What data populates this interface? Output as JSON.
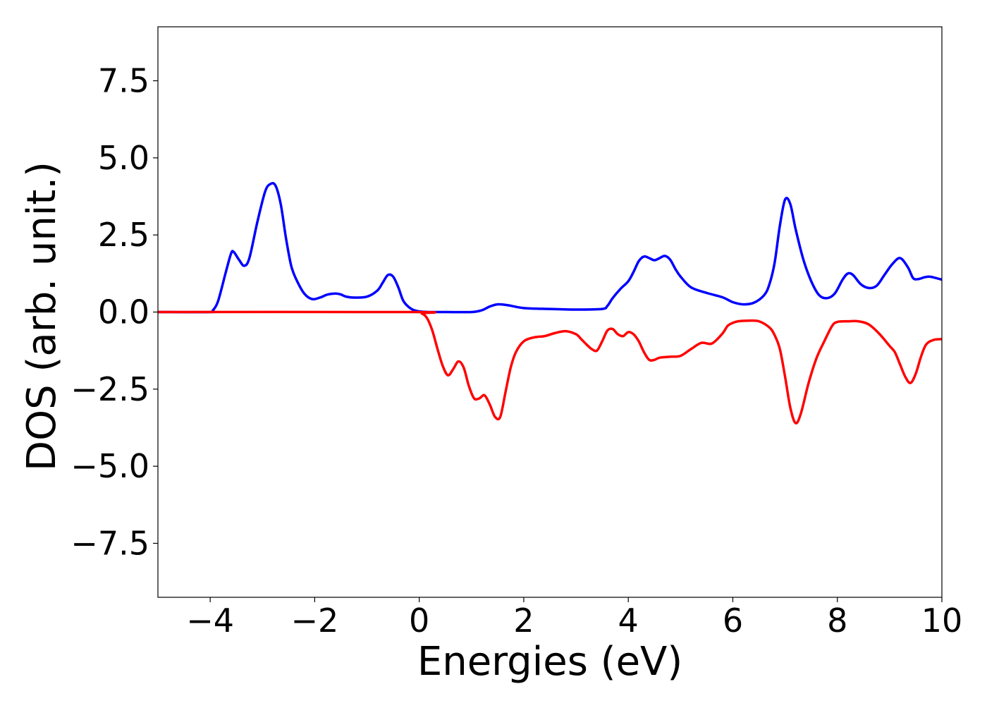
{
  "chart_data": {
    "type": "line",
    "title": "",
    "xlabel": "Energies (eV)",
    "ylabel": "DOS (arb. unit.)",
    "xlim": [
      -5,
      10
    ],
    "ylim": [
      -9.25,
      9.25
    ],
    "grid": false,
    "x_ticks": [
      -4,
      -2,
      0,
      2,
      4,
      6,
      8,
      10
    ],
    "x_tick_labels": [
      "−4",
      "−2",
      "0",
      "2",
      "4",
      "6",
      "8",
      "10"
    ],
    "y_ticks": [
      7.5,
      5.0,
      2.5,
      0.0,
      -2.5,
      -5.0,
      -7.5
    ],
    "y_tick_labels": [
      "7.5",
      "5.0",
      "2.5",
      "0.0",
      "−2.5",
      "−5.0",
      "−7.5"
    ],
    "series": [
      {
        "color": "#0000ff",
        "x": [
          -5.0,
          -4.0,
          -3.95,
          -3.85,
          -3.7,
          -3.6,
          -3.55,
          -3.45,
          -3.35,
          -3.25,
          -3.1,
          -2.95,
          -2.85,
          -2.75,
          -2.65,
          -2.55,
          -2.45,
          -2.35,
          -2.2,
          -2.05,
          -1.9,
          -1.75,
          -1.6,
          -1.5,
          -1.4,
          -1.25,
          -1.0,
          -0.8,
          -0.7,
          -0.6,
          -0.5,
          -0.4,
          -0.3,
          -0.15,
          0.0,
          0.2,
          0.5,
          1.0,
          1.2,
          1.35,
          1.5,
          1.7,
          2.0,
          2.5,
          3.0,
          3.5,
          3.6,
          3.7,
          3.85,
          4.0,
          4.1,
          4.2,
          4.3,
          4.4,
          4.5,
          4.6,
          4.7,
          4.8,
          4.9,
          5.0,
          5.2,
          5.5,
          5.8,
          6.0,
          6.2,
          6.4,
          6.6,
          6.7,
          6.8,
          6.9,
          7.0,
          7.1,
          7.2,
          7.35,
          7.5,
          7.65,
          7.8,
          7.95,
          8.1,
          8.2,
          8.3,
          8.45,
          8.6,
          8.75,
          8.9,
          9.05,
          9.2,
          9.35,
          9.45,
          9.55,
          9.65,
          9.75,
          9.85,
          10.0
        ],
        "y": [
          0.0,
          0.0,
          0.05,
          0.35,
          1.3,
          1.9,
          1.95,
          1.7,
          1.5,
          1.75,
          2.9,
          3.9,
          4.15,
          4.1,
          3.5,
          2.4,
          1.5,
          1.05,
          0.6,
          0.42,
          0.47,
          0.57,
          0.6,
          0.57,
          0.5,
          0.47,
          0.5,
          0.7,
          0.95,
          1.2,
          1.15,
          0.8,
          0.35,
          0.1,
          0.02,
          0.0,
          0.0,
          0.0,
          0.06,
          0.18,
          0.25,
          0.22,
          0.13,
          0.1,
          0.08,
          0.1,
          0.2,
          0.45,
          0.75,
          1.0,
          1.3,
          1.65,
          1.8,
          1.75,
          1.68,
          1.75,
          1.82,
          1.7,
          1.4,
          1.15,
          0.8,
          0.62,
          0.48,
          0.32,
          0.25,
          0.3,
          0.55,
          0.9,
          1.6,
          2.8,
          3.65,
          3.5,
          2.7,
          1.7,
          1.0,
          0.55,
          0.45,
          0.6,
          1.05,
          1.25,
          1.2,
          0.9,
          0.78,
          0.85,
          1.2,
          1.55,
          1.75,
          1.45,
          1.1,
          1.07,
          1.12,
          1.15,
          1.12,
          1.05
        ]
      },
      {
        "color": "#ff0000",
        "x": [
          -5.0,
          -0.1,
          0.05,
          0.15,
          0.25,
          0.35,
          0.45,
          0.55,
          0.65,
          0.75,
          0.85,
          0.95,
          1.05,
          1.15,
          1.25,
          1.35,
          1.45,
          1.55,
          1.65,
          1.75,
          1.85,
          2.0,
          2.2,
          2.4,
          2.6,
          2.8,
          3.0,
          3.1,
          3.2,
          3.3,
          3.4,
          3.5,
          3.6,
          3.7,
          3.8,
          3.9,
          4.0,
          4.1,
          4.2,
          4.3,
          4.4,
          4.5,
          4.6,
          4.8,
          5.0,
          5.2,
          5.4,
          5.6,
          5.8,
          5.9,
          6.0,
          6.1,
          6.3,
          6.5,
          6.7,
          6.8,
          6.9,
          7.0,
          7.1,
          7.2,
          7.3,
          7.45,
          7.6,
          7.75,
          7.9,
          8.0,
          8.2,
          8.4,
          8.6,
          8.8,
          9.0,
          9.1,
          9.2,
          9.3,
          9.4,
          9.5,
          9.6,
          9.7,
          9.85,
          10.0
        ],
        "y": [
          0.0,
          0.0,
          -0.05,
          -0.2,
          -0.6,
          -1.2,
          -1.75,
          -2.05,
          -1.85,
          -1.6,
          -1.8,
          -2.4,
          -2.8,
          -2.8,
          -2.7,
          -3.0,
          -3.4,
          -3.4,
          -2.6,
          -1.8,
          -1.3,
          -0.95,
          -0.82,
          -0.78,
          -0.68,
          -0.62,
          -0.72,
          -0.88,
          -1.05,
          -1.2,
          -1.25,
          -0.95,
          -0.6,
          -0.55,
          -0.72,
          -0.78,
          -0.65,
          -0.72,
          -0.95,
          -1.3,
          -1.55,
          -1.55,
          -1.48,
          -1.45,
          -1.42,
          -1.2,
          -1.0,
          -1.02,
          -0.7,
          -0.45,
          -0.35,
          -0.3,
          -0.28,
          -0.3,
          -0.5,
          -0.75,
          -1.2,
          -2.1,
          -3.1,
          -3.6,
          -3.3,
          -2.3,
          -1.5,
          -0.95,
          -0.45,
          -0.32,
          -0.3,
          -0.3,
          -0.4,
          -0.7,
          -1.1,
          -1.3,
          -1.7,
          -2.1,
          -2.3,
          -2.0,
          -1.45,
          -1.05,
          -0.9,
          -0.88
        ]
      }
    ]
  }
}
